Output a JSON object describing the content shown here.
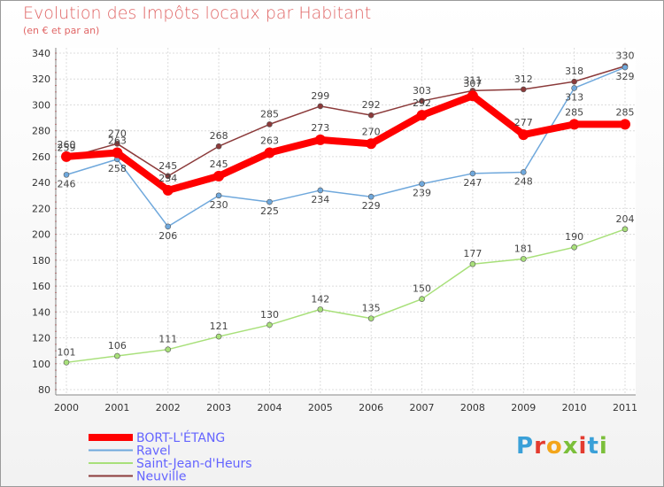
{
  "header": {
    "title": "Evolution des Impôts locaux par Habitant",
    "subtitle": "(en € et par an)"
  },
  "logo": {
    "text": "Proxiti",
    "colors": [
      "#3aa0d8",
      "#e33b2f",
      "#f3a51b",
      "#7bbf3a",
      "#e33b2f",
      "#3aa0d8",
      "#7bbf3a"
    ]
  },
  "chart_data": {
    "type": "line",
    "title": "Evolution des Impôts locaux par Habitant",
    "subtitle": "(en € et par an)",
    "x": [
      "2000",
      "2001",
      "2002",
      "2003",
      "2004",
      "2005",
      "2006",
      "2007",
      "2008",
      "2009",
      "2010",
      "2011"
    ],
    "ylim": [
      80,
      340
    ],
    "yticks": [
      80,
      100,
      120,
      140,
      160,
      180,
      200,
      220,
      240,
      260,
      280,
      300,
      320,
      340
    ],
    "grid": true,
    "legend_position": "bottom-left",
    "series": [
      {
        "name": "BORT-L'ÉTANG",
        "color": "#ff0000",
        "width": 8,
        "values": [
          260,
          263,
          234,
          245,
          263,
          273,
          270,
          292,
          307,
          277,
          285,
          285
        ]
      },
      {
        "name": "Ravel",
        "color": "#6fa8dc",
        "width": 1.5,
        "values": [
          246,
          258,
          206,
          230,
          225,
          234,
          229,
          239,
          247,
          248,
          313,
          329
        ]
      },
      {
        "name": "Saint-Jean-d'Heurs",
        "color": "#a8e07a",
        "width": 1.5,
        "values": [
          101,
          106,
          111,
          121,
          130,
          142,
          135,
          150,
          177,
          181,
          190,
          204
        ]
      },
      {
        "name": "Neuville",
        "color": "#8b3a3a",
        "width": 1.5,
        "values": [
          259,
          270,
          245,
          268,
          285,
          299,
          292,
          303,
          311,
          312,
          318,
          330
        ]
      }
    ]
  }
}
